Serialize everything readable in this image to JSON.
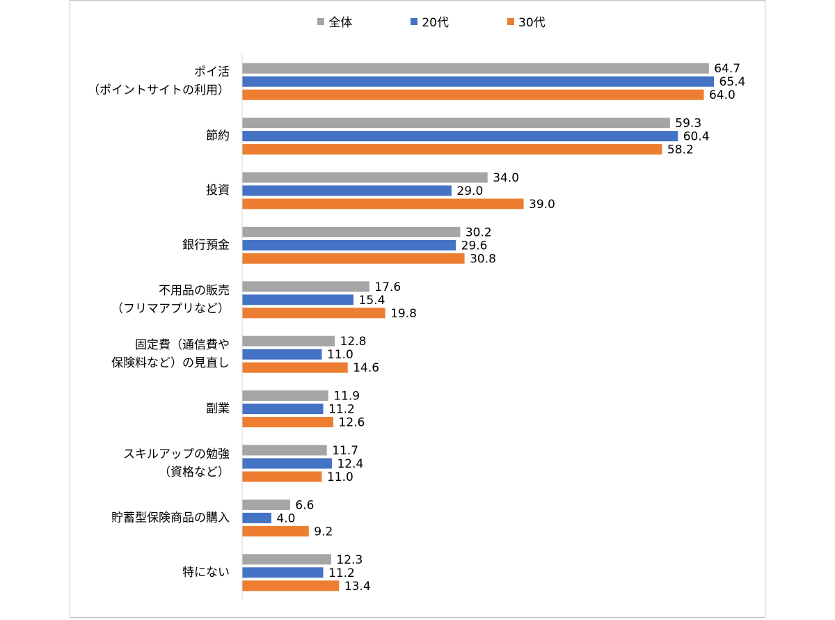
{
  "chart_data": {
    "type": "bar",
    "orientation": "horizontal",
    "categories": [
      "ポイ活\n（ポイントサイトの利用）",
      "節約",
      "投資",
      "銀行預金",
      "不用品の販売\n（フリマアプリなど）",
      "固定費（通信費や\n保険料など）の見直し",
      "副業",
      "スキルアップの勉強\n（資格など）",
      "貯蓄型保険商品の購入",
      "特にない"
    ],
    "series": [
      {
        "name": "全体",
        "color": "#a5a5a5",
        "values": [
          64.7,
          59.3,
          34.0,
          30.2,
          17.6,
          12.8,
          11.9,
          11.7,
          6.6,
          12.3
        ]
      },
      {
        "name": "20代",
        "color": "#4472c4",
        "values": [
          65.4,
          60.4,
          29.0,
          29.6,
          15.4,
          11.0,
          11.2,
          12.4,
          4.0,
          11.2
        ]
      },
      {
        "name": "30代",
        "color": "#ed7d31",
        "values": [
          64.0,
          58.2,
          39.0,
          30.8,
          19.8,
          14.6,
          12.6,
          11.0,
          9.2,
          13.4
        ]
      }
    ],
    "xlim": [
      0,
      70
    ],
    "grid": false,
    "legend_position": "top-center",
    "value_label_format": "0.0"
  }
}
